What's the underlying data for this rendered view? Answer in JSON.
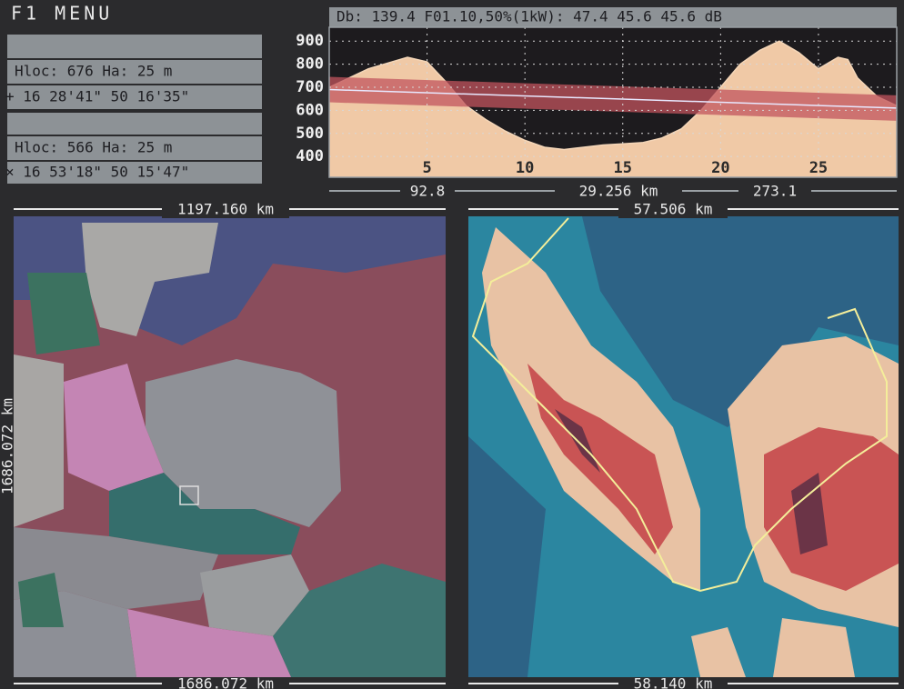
{
  "menu": "F1  MENU",
  "sites": [
    {
      "hloc": "Hloc: 676   Ha: 25 m",
      "coords": "+ 16 28'41\" 50 16'35\""
    },
    {
      "hloc": "Hloc: 566   Ha: 25 m",
      "coords": "× 16 53'18\" 50 15'47\""
    }
  ],
  "profile": {
    "type": "area",
    "header": "Db: 139.4  F01.10,50%(1kW):  47.4  45.6  45.6 dB",
    "x": [
      0,
      2,
      4,
      5,
      6,
      7,
      8,
      9,
      10,
      11,
      12,
      13,
      14,
      15,
      16,
      17,
      18,
      19,
      20,
      21,
      22,
      23,
      24,
      25,
      26,
      26.5,
      27,
      28,
      29
    ],
    "terrain": [
      700,
      780,
      830,
      810,
      720,
      620,
      560,
      510,
      470,
      440,
      430,
      440,
      450,
      455,
      460,
      480,
      520,
      600,
      700,
      800,
      860,
      900,
      850,
      780,
      830,
      820,
      740,
      660,
      620
    ],
    "los": [
      690,
      610
    ],
    "xlim": [
      0,
      29
    ],
    "ylim": [
      310,
      960
    ],
    "xticks": [
      5,
      10,
      15,
      20,
      25
    ],
    "yticks": [
      900,
      800,
      700,
      600,
      500,
      400
    ],
    "footer": {
      "left": "92.8",
      "center": "29.256 km",
      "right": "273.1"
    }
  },
  "maps": [
    {
      "top": "1197.160 km",
      "side": "1686.072 km",
      "bottom": "1686.072 km"
    },
    {
      "top": "57.506 km",
      "bottom": "58.140 km"
    }
  ]
}
